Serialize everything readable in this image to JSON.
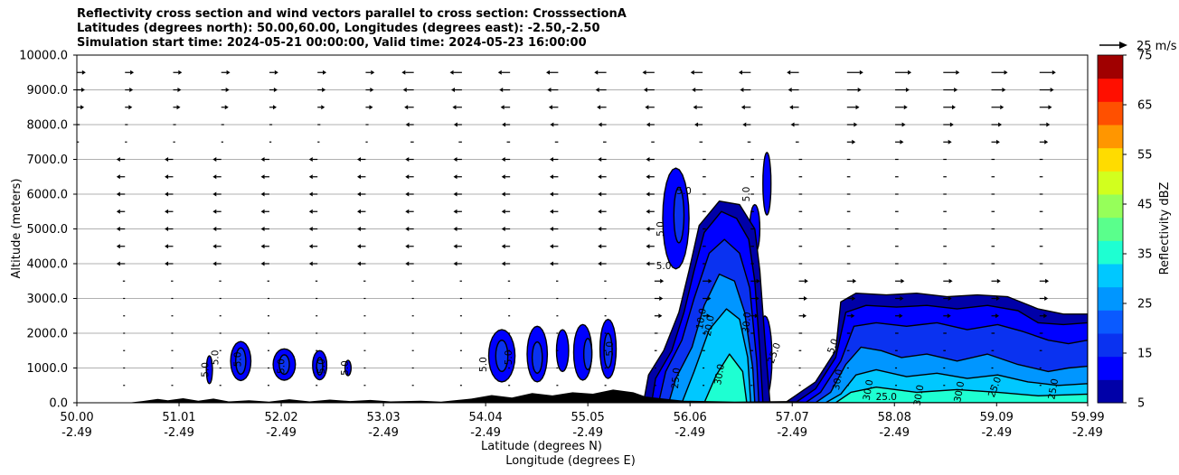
{
  "chart_data": {
    "type": "contour",
    "title_lines": [
      "Reflectivity cross section and wind vectors parallel to cross section: CrosssectionA",
      "Latitudes (degrees north): 50.00,60.00, Longitudes (degrees east): -2.50,-2.50",
      "Simulation start time: 2024-05-21 00:00:00, Valid time: 2024-05-23 16:00:00"
    ],
    "xlabel": "Latitude (degrees N)",
    "xlabel2": "Longitude (degrees E)",
    "ylabel": "Altitude (meters)",
    "xlim": [
      50.0,
      59.99
    ],
    "ylim": [
      0,
      10000
    ],
    "grid": "horizontal",
    "x_ticks": [
      {
        "lat": "50.00",
        "lon": "-2.49",
        "v": 50.0
      },
      {
        "lat": "51.01",
        "lon": "-2.49",
        "v": 51.01
      },
      {
        "lat": "52.02",
        "lon": "-2.49",
        "v": 52.02
      },
      {
        "lat": "53.03",
        "lon": "-2.49",
        "v": 53.03
      },
      {
        "lat": "54.04",
        "lon": "-2.49",
        "v": 54.04
      },
      {
        "lat": "55.05",
        "lon": "-2.49",
        "v": 55.05
      },
      {
        "lat": "56.06",
        "lon": "-2.49",
        "v": 56.06
      },
      {
        "lat": "57.07",
        "lon": "-2.49",
        "v": 57.07
      },
      {
        "lat": "58.08",
        "lon": "-2.49",
        "v": 58.08
      },
      {
        "lat": "59.09",
        "lon": "-2.49",
        "v": 59.09
      },
      {
        "lat": "59.99",
        "lon": "-2.49",
        "v": 59.99
      }
    ],
    "y_ticks": [
      {
        "label": "0.0",
        "v": 0
      },
      {
        "label": "1000.0",
        "v": 1000
      },
      {
        "label": "2000.0",
        "v": 2000
      },
      {
        "label": "3000.0",
        "v": 3000
      },
      {
        "label": "4000.0",
        "v": 4000
      },
      {
        "label": "5000.0",
        "v": 5000
      },
      {
        "label": "6000.0",
        "v": 6000
      },
      {
        "label": "7000.0",
        "v": 7000
      },
      {
        "label": "8000.0",
        "v": 8000
      },
      {
        "label": "9000.0",
        "v": 9000
      },
      {
        "label": "10000.0",
        "v": 10000
      }
    ],
    "colorbar": {
      "label": "Reflectivity dBZ",
      "levels": [
        5,
        10,
        15,
        20,
        25,
        30,
        35,
        40,
        45,
        50,
        55,
        60,
        65,
        70,
        75
      ],
      "colors": [
        "#0000a8",
        "#0000ff",
        "#0a32f0",
        "#0a5aff",
        "#0096ff",
        "#00c8ff",
        "#1effd2",
        "#5aff8c",
        "#96ff5a",
        "#d2ff1e",
        "#ffdc00",
        "#ff9600",
        "#ff5000",
        "#ff0f00",
        "#a00000"
      ],
      "tick_labels": [
        "75",
        "65",
        "55",
        "45",
        "35",
        "25",
        "15",
        "5"
      ]
    },
    "quiver_key": {
      "label": "25 m/s",
      "speed": 25
    },
    "contour_labels": [
      {
        "t": "5.0",
        "x": 51.3,
        "y": 950,
        "r": -90
      },
      {
        "t": "5.0",
        "x": 51.4,
        "y": 1300,
        "r": -90
      },
      {
        "t": "5.0",
        "x": 51.62,
        "y": 1250,
        "r": -90
      },
      {
        "t": "5.0",
        "x": 52.05,
        "y": 1050,
        "r": -90
      },
      {
        "t": "5.0",
        "x": 52.45,
        "y": 1050,
        "r": -90
      },
      {
        "t": "5.0",
        "x": 52.68,
        "y": 1000,
        "r": -90
      },
      {
        "t": "5.0",
        "x": 54.05,
        "y": 1100,
        "r": -90
      },
      {
        "t": "5.0",
        "x": 54.3,
        "y": 1300,
        "r": -90
      },
      {
        "t": "5.0",
        "x": 55.3,
        "y": 1550,
        "r": -90
      },
      {
        "t": "5.0",
        "x": 55.8,
        "y": 3850,
        "r": 0
      },
      {
        "t": "5.0",
        "x": 55.8,
        "y": 5000,
        "r": -90
      },
      {
        "t": "5.0",
        "x": 56.0,
        "y": 6000,
        "r": 0
      },
      {
        "t": "5.0",
        "x": 56.65,
        "y": 6000,
        "r": -90
      },
      {
        "t": "10.0",
        "x": 56.2,
        "y": 2400,
        "r": -80
      },
      {
        "t": "20.0",
        "x": 56.28,
        "y": 2200,
        "r": -80
      },
      {
        "t": "30.0",
        "x": 56.65,
        "y": 2300,
        "r": -85
      },
      {
        "t": "30.0",
        "x": 56.38,
        "y": 800,
        "r": -80
      },
      {
        "t": "25.0",
        "x": 55.95,
        "y": 700,
        "r": -85
      },
      {
        "t": "25.0",
        "x": 56.92,
        "y": 1400,
        "r": -70
      },
      {
        "t": "5.0",
        "x": 57.5,
        "y": 1600,
        "r": -70
      },
      {
        "t": "30.0",
        "x": 57.55,
        "y": 650,
        "r": -80
      },
      {
        "t": "30.0",
        "x": 57.85,
        "y": 350,
        "r": -80
      },
      {
        "t": "25.0",
        "x": 58.0,
        "y": 80,
        "r": 0
      },
      {
        "t": "30.0",
        "x": 58.35,
        "y": 200,
        "r": -80
      },
      {
        "t": "30.0",
        "x": 58.75,
        "y": 300,
        "r": -80
      },
      {
        "t": "25.0",
        "x": 59.1,
        "y": 420,
        "r": -70
      },
      {
        "t": "25.0",
        "x": 59.68,
        "y": 380,
        "r": -80
      }
    ]
  }
}
